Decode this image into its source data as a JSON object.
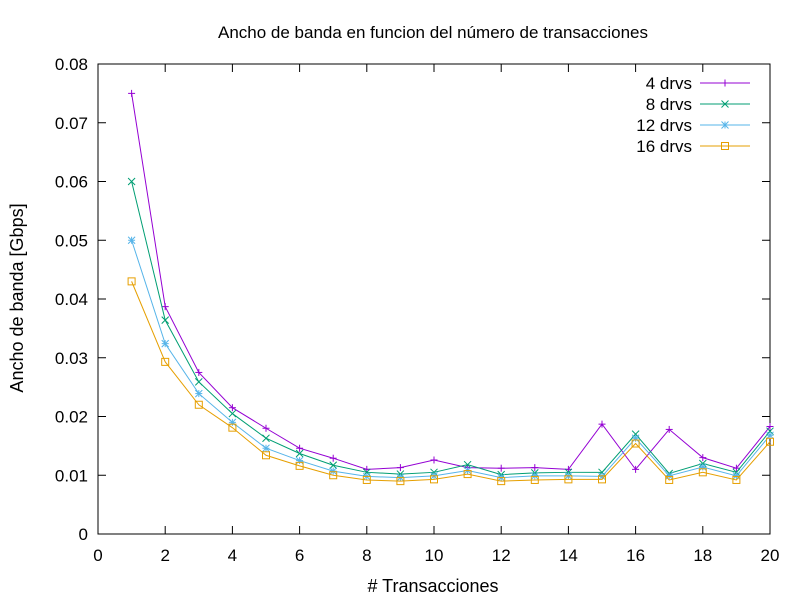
{
  "chart_data": {
    "type": "line",
    "title": "Ancho de banda en funcion del número de transacciones",
    "xlabel": "# Transacciones",
    "ylabel": "Ancho de banda [Gbps]",
    "xlim": [
      0,
      20
    ],
    "ylim": [
      0,
      0.08
    ],
    "xticks": [
      "0",
      "2",
      "4",
      "6",
      "8",
      "10",
      "12",
      "14",
      "16",
      "18",
      "20"
    ],
    "yticks": [
      "0",
      "0.01",
      "0.02",
      "0.03",
      "0.04",
      "0.05",
      "0.06",
      "0.07",
      "0.08"
    ],
    "grid": false,
    "legend_position": "top-right",
    "x": [
      1,
      2,
      3,
      4,
      5,
      6,
      7,
      8,
      9,
      10,
      11,
      12,
      13,
      14,
      15,
      16,
      17,
      18,
      19,
      20
    ],
    "series": [
      {
        "name": "4 drvs",
        "color": "#9400d3",
        "marker": "plus",
        "values": [
          0.075,
          0.0387,
          0.0275,
          0.0215,
          0.018,
          0.0146,
          0.0129,
          0.011,
          0.0113,
          0.0126,
          0.0113,
          0.0112,
          0.0113,
          0.011,
          0.0187,
          0.011,
          0.0178,
          0.013,
          0.0112,
          0.0183
        ]
      },
      {
        "name": "8 drvs",
        "color": "#009e73",
        "marker": "cross",
        "values": [
          0.06,
          0.0364,
          0.0259,
          0.0205,
          0.0163,
          0.0137,
          0.0117,
          0.0105,
          0.0102,
          0.0105,
          0.0118,
          0.0101,
          0.0104,
          0.0105,
          0.0105,
          0.017,
          0.0103,
          0.012,
          0.0105,
          0.0175
        ]
      },
      {
        "name": "12 drvs",
        "color": "#56b4e9",
        "marker": "asterisk",
        "values": [
          0.05,
          0.0324,
          0.0239,
          0.019,
          0.0146,
          0.0125,
          0.0107,
          0.0098,
          0.0096,
          0.0099,
          0.0108,
          0.0096,
          0.0099,
          0.0099,
          0.0098,
          0.0163,
          0.0099,
          0.0114,
          0.0099,
          0.0168
        ]
      },
      {
        "name": "16 drvs",
        "color": "#e69f00",
        "marker": "square",
        "values": [
          0.043,
          0.0293,
          0.022,
          0.0181,
          0.0134,
          0.0116,
          0.01,
          0.0092,
          0.009,
          0.0093,
          0.0102,
          0.009,
          0.0092,
          0.0093,
          0.0093,
          0.0154,
          0.0092,
          0.0105,
          0.0092,
          0.0157
        ]
      }
    ]
  }
}
